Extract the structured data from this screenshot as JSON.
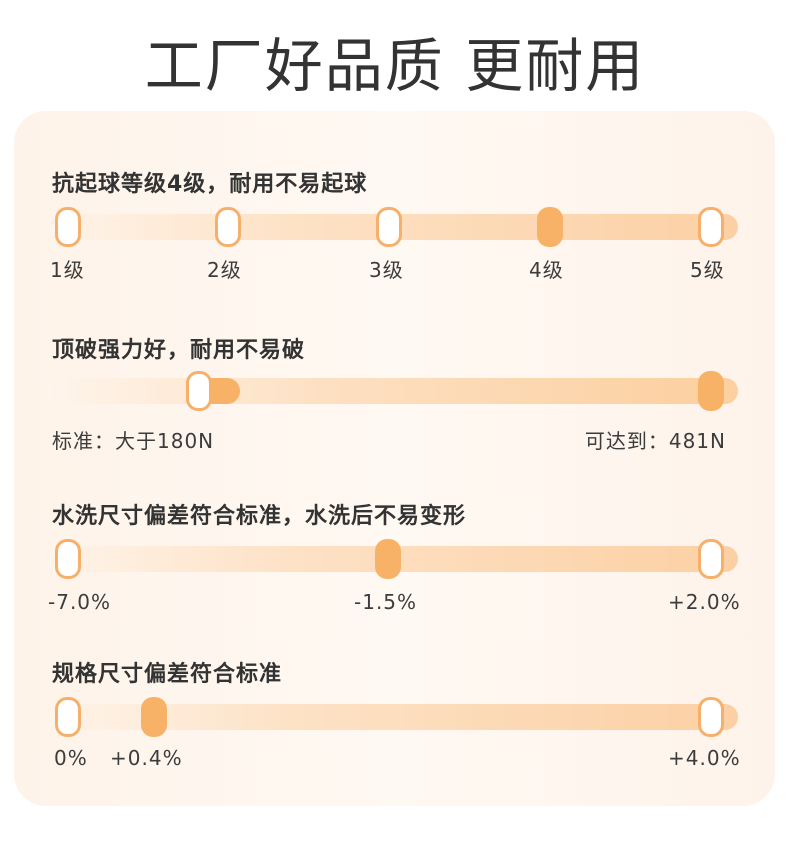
{
  "title": "工厂好品质 更耐用",
  "accent_color": "#f8b267",
  "sections": [
    {
      "title": "抗起球等级4级，耐用不易起球",
      "labels": [
        "1级",
        "2级",
        "3级",
        "4级",
        "5级"
      ],
      "selected_index": 3
    },
    {
      "title": "顶破强力好，耐用不易破",
      "left_label": "标准：大于180N",
      "right_label": "可达到：481N"
    },
    {
      "title": "水洗尺寸偏差符合标准，水洗后不易变形",
      "labels": [
        "-7.0%",
        "-1.5%",
        "+2.0%"
      ],
      "selected_index": 1
    },
    {
      "title": "规格尺寸偏差符合标准",
      "labels": [
        "0%",
        "+0.4%",
        "+4.0%"
      ],
      "selected_index": 1
    }
  ]
}
